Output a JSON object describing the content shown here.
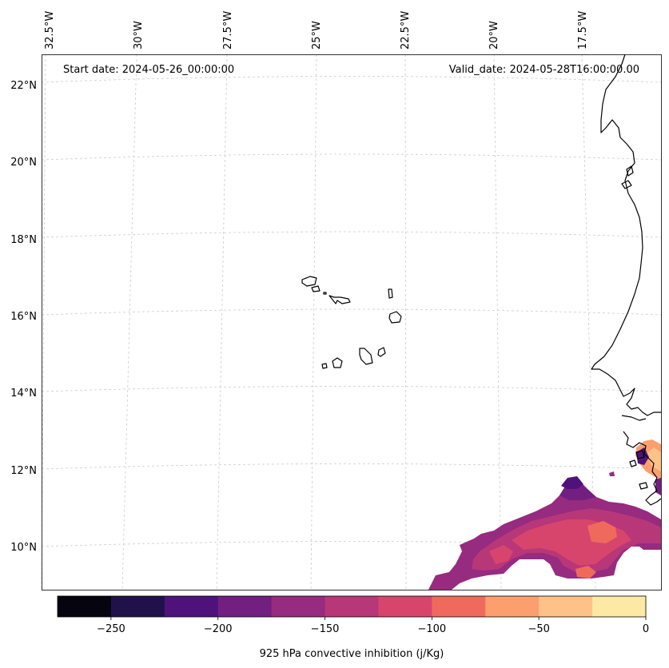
{
  "map": {
    "start_date": "Start date: 2024-05-26_00:00:00",
    "valid_date": "Valid_date: 2024-05-28T16:00:00.00",
    "lon_labels": [
      "32.5°W",
      "30°W",
      "27.5°W",
      "25°W",
      "22.5°W",
      "20°W",
      "17.5°W"
    ],
    "lat_labels": [
      "22°N",
      "20°N",
      "18°N",
      "16°N",
      "14°N",
      "12°N",
      "10°N"
    ],
    "features": [
      "cape-verde-islands",
      "west-africa-coastline",
      "convective-inhibition-field"
    ]
  },
  "colorbar": {
    "label": "925 hPa convective inhibition (j/Kg)",
    "ticks": [
      "−250",
      "−200",
      "−150",
      "−100",
      "−50",
      "0"
    ],
    "tick_values": [
      -250,
      -200,
      -150,
      -100,
      -50,
      0
    ],
    "range": [
      -275,
      0
    ],
    "levels": [
      -275,
      -250,
      -225,
      -200,
      -175,
      -150,
      -125,
      -100,
      -75,
      -50,
      -25,
      0
    ],
    "colors": [
      "#05040f",
      "#21114a",
      "#4f127b",
      "#721f81",
      "#962b80",
      "#b73779",
      "#d8456c",
      "#ef6a5c",
      "#fb9f6f",
      "#fec288",
      "#fde8a5"
    ]
  },
  "colors": {
    "gridline": "#cccccc",
    "coastline": "#000000"
  }
}
